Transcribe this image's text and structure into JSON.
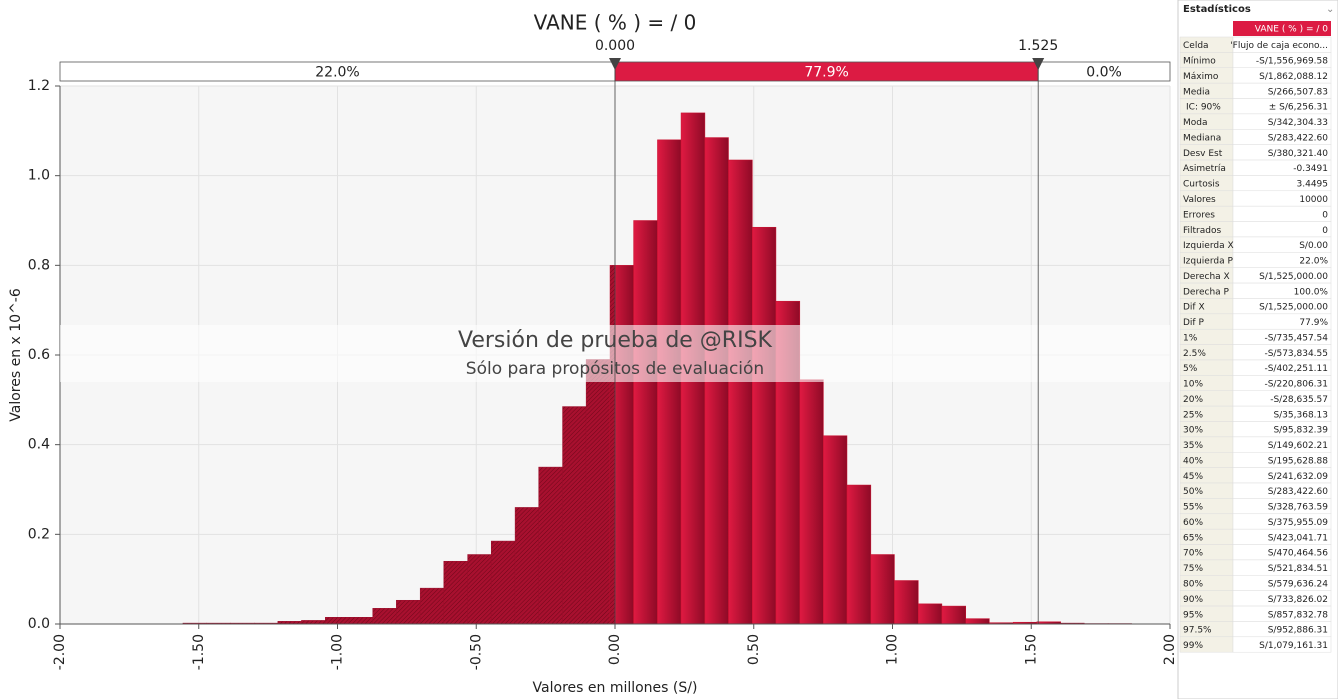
{
  "chart_data": {
    "type": "histogram",
    "title": "VANE ( % ) = / 0",
    "xlabel": "Valores en millones (S/)",
    "ylabel": "Valores en x 10^-6",
    "bins": [
      -1.557,
      -1.471,
      -1.386,
      -1.3,
      -1.215,
      -1.13,
      -1.044,
      -0.959,
      -0.873,
      -0.788,
      -0.702,
      -0.617,
      -0.531,
      -0.446,
      -0.36,
      -0.275,
      -0.189,
      -0.104,
      -0.018,
      0.067,
      0.153,
      0.238,
      0.324,
      0.409,
      0.495,
      0.58,
      0.666,
      0.751,
      0.836,
      0.922,
      1.007,
      1.093,
      1.178,
      1.264,
      1.349,
      1.435,
      1.52,
      1.606,
      1.691,
      1.777,
      1.862
    ],
    "values": [
      0.002,
      0.002,
      0.002,
      0.002,
      0.006,
      0.008,
      0.015,
      0.015,
      0.035,
      0.053,
      0.08,
      0.14,
      0.155,
      0.185,
      0.26,
      0.35,
      0.485,
      0.59,
      0.8,
      0.9,
      1.08,
      1.14,
      1.085,
      1.035,
      0.885,
      0.72,
      0.545,
      0.42,
      0.31,
      0.155,
      0.097,
      0.045,
      0.04,
      0.012,
      0.003,
      0.004,
      0.005,
      0.002,
      0.001,
      0.001
    ],
    "color": "#c8102e",
    "outside_color": "#9a0d2a",
    "xlim": [
      -2,
      2
    ],
    "xticks": [
      {
        "value": -2,
        "label": "-2.00"
      },
      {
        "value": -1.5,
        "label": "-1.50"
      },
      {
        "value": -1,
        "label": "-1.00"
      },
      {
        "value": -0.5,
        "label": "-0.50"
      },
      {
        "value": 0,
        "label": "0.00"
      },
      {
        "value": 0.5,
        "label": "0.50"
      },
      {
        "value": 1,
        "label": "1.00"
      },
      {
        "value": 1.5,
        "label": "1.50"
      },
      {
        "value": 2,
        "label": "2.00"
      }
    ],
    "ylim": [
      0,
      1.2
    ],
    "yticks": [
      {
        "value": 0,
        "label": "0.0"
      },
      0.2,
      0.4,
      0.6,
      0.8,
      {
        "value": 1,
        "label": "1.0"
      },
      1.2
    ],
    "grid": true,
    "delimiters": [
      {
        "value": 0,
        "label": "0.000"
      },
      {
        "value": 1.525,
        "label": "1.525"
      }
    ],
    "regions": [
      {
        "value": 22.0,
        "label": "22.0%"
      },
      {
        "value": 77.9,
        "label": "77.9%"
      },
      {
        "value": 0.0,
        "label": "0.0%"
      }
    ],
    "watermark": [
      "Versión de prueba de @RISK",
      "Sólo para propósitos de evaluación"
    ]
  },
  "stats": {
    "title": "Estadísticos",
    "column": "VANE ( % ) = / 0",
    "rows": [
      [
        "Celda",
        "'Flujo de caja econo..."
      ],
      [
        "Mínimo",
        "-S/1,556,969.58"
      ],
      [
        "Máximo",
        "S/1,862,088.12"
      ],
      [
        "Media",
        "S/266,507.83"
      ],
      [
        "IC: 90%",
        "± S/6,256.31"
      ],
      [
        "Moda",
        "S/342,304.33"
      ],
      [
        "Mediana",
        "S/283,422.60"
      ],
      [
        "Desv Est",
        "S/380,321.40"
      ],
      [
        "Asimetría",
        "-0.3491"
      ],
      [
        "Curtosis",
        "3.4495"
      ],
      [
        "Valores",
        "10000"
      ],
      [
        "Errores",
        "0"
      ],
      [
        "Filtrados",
        "0"
      ],
      [
        "Izquierda X",
        "S/0.00"
      ],
      [
        "Izquierda P",
        "22.0%"
      ],
      [
        "Derecha X",
        "S/1,525,000.00"
      ],
      [
        "Derecha P",
        "100.0%"
      ],
      [
        "Dif X",
        "S/1,525,000.00"
      ],
      [
        "Dif P",
        "77.9%"
      ],
      [
        "1%",
        "-S/735,457.54"
      ],
      [
        "2.5%",
        "-S/573,834.55"
      ],
      [
        "5%",
        "-S/402,251.11"
      ],
      [
        "10%",
        "-S/220,806.31"
      ],
      [
        "20%",
        "-S/28,635.57"
      ],
      [
        "25%",
        "S/35,368.13"
      ],
      [
        "30%",
        "S/95,832.39"
      ],
      [
        "35%",
        "S/149,602.21"
      ],
      [
        "40%",
        "S/195,628.88"
      ],
      [
        "45%",
        "S/241,632.09"
      ],
      [
        "50%",
        "S/283,422.60"
      ],
      [
        "55%",
        "S/328,763.59"
      ],
      [
        "60%",
        "S/375,955.09"
      ],
      [
        "65%",
        "S/423,041.71"
      ],
      [
        "70%",
        "S/470,464.56"
      ],
      [
        "75%",
        "S/521,834.51"
      ],
      [
        "80%",
        "S/579,636.24"
      ],
      [
        "90%",
        "S/733,826.02"
      ],
      [
        "95%",
        "S/857,832.78"
      ],
      [
        "97.5%",
        "S/952,886.31"
      ],
      [
        "99%",
        "S/1,079,161.31"
      ]
    ]
  }
}
